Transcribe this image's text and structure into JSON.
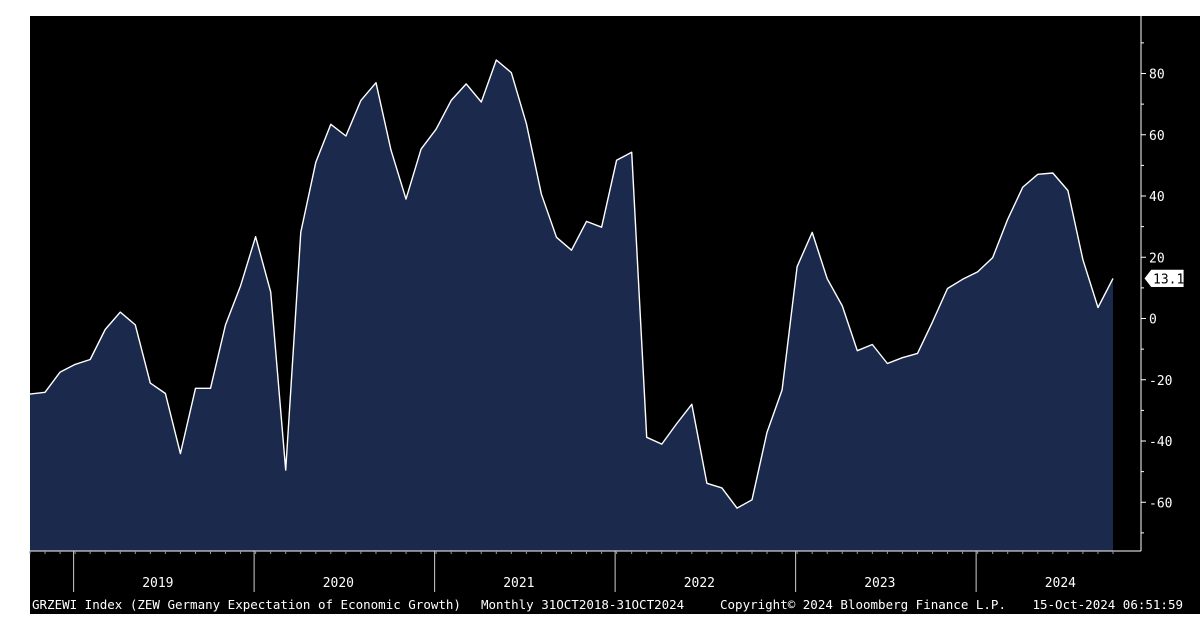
{
  "chart_data": {
    "type": "area",
    "frequency": "monthly",
    "x_start": "2018-10",
    "x_end": "2024-10",
    "y_ticks": [
      80,
      60,
      40,
      20,
      0,
      -20,
      -40,
      -60
    ],
    "ylim": [
      -76,
      95
    ],
    "grid": false,
    "year_labels": [
      "2019",
      "2020",
      "2021",
      "2022",
      "2023",
      "2024"
    ],
    "last_value_label": "13.1",
    "values": [
      -24.7,
      -24.1,
      -17.5,
      -15.0,
      -13.4,
      -3.6,
      2.1,
      -2.1,
      -21.1,
      -24.5,
      -44.1,
      -22.8,
      -22.8,
      -2.1,
      10.7,
      26.7,
      8.7,
      -49.5,
      28.2,
      51.0,
      63.4,
      59.6,
      71.2,
      77.0,
      55.0,
      39.0,
      55.3,
      61.8,
      71.2,
      76.6,
      70.7,
      84.4,
      80.3,
      63.6,
      40.6,
      26.5,
      22.3,
      31.7,
      29.8,
      51.7,
      54.3,
      -38.8,
      -41.0,
      -34.3,
      -28.0,
      -53.8,
      -55.3,
      -61.9,
      -59.2,
      -37.2,
      -23.3,
      16.9,
      28.1,
      13.0,
      4.1,
      -10.5,
      -8.5,
      -14.7,
      -12.8,
      -11.4,
      -1.1,
      9.8,
      12.8,
      15.2,
      19.9,
      32.4,
      42.9,
      47.1,
      47.5,
      41.8,
      19.2,
      3.6,
      13.1
    ],
    "series": [
      {
        "name": "",
        "color": "#1b2a4c",
        "line_color": "#ffffff"
      }
    ]
  },
  "footer": {
    "ticker": "GRZEWI Index (ZEW Germany Expectation of Economic Growth)",
    "range": "Monthly 31OCT2018-31OCT2024",
    "copyright": "Copyright© 2024 Bloomberg Finance L.P.",
    "timestamp": "15-Oct-2024 06:51:59"
  },
  "colors": {
    "background": "#000000",
    "area_fill": "#1b2a4c",
    "line": "#ffffff",
    "axis": "#ffffff"
  }
}
